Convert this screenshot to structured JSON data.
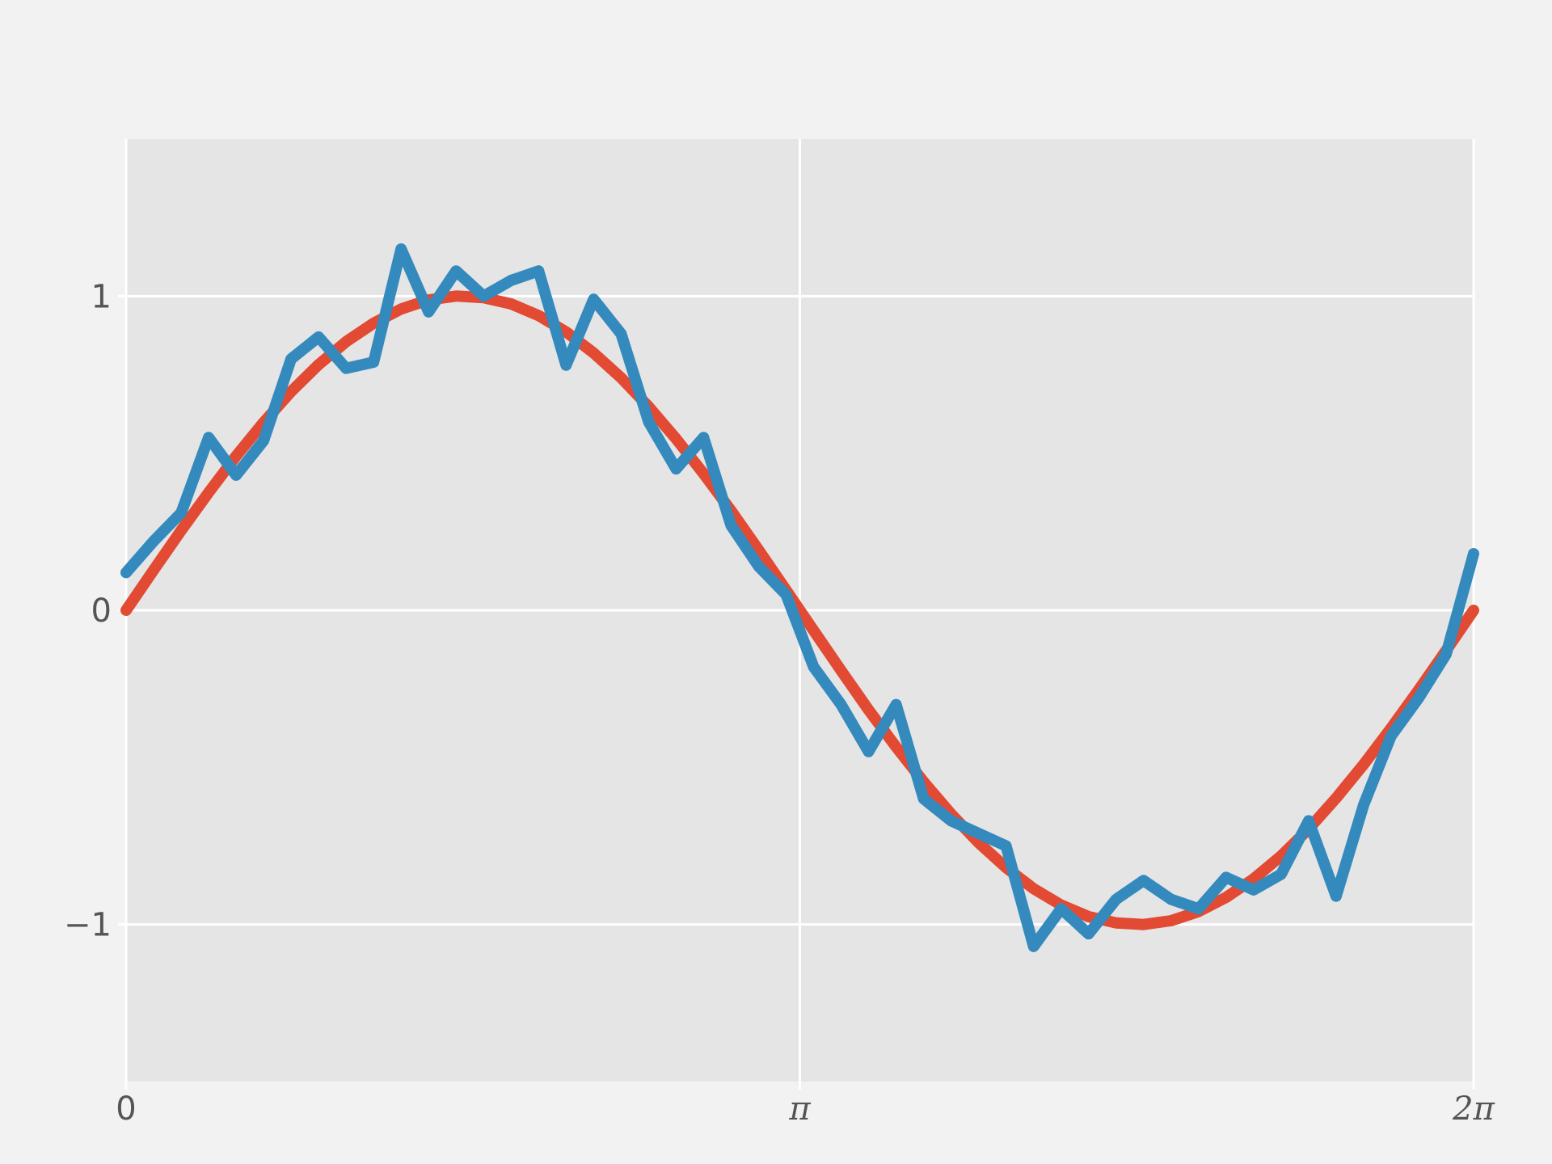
{
  "chart_data": {
    "type": "line",
    "title": "",
    "xlabel": "",
    "ylabel": "",
    "xlim": [
      0,
      6.2832
    ],
    "ylim": [
      -1.5,
      1.5
    ],
    "grid": true,
    "style": {
      "figure_background": "#f2f2f2",
      "axes_background": "#e5e5e5",
      "grid_color": "#ffffff",
      "tick_label_color": "#555555"
    },
    "xticks": [
      {
        "value": 0,
        "label": "0"
      },
      {
        "value": 3.1416,
        "label": "π",
        "pi": true
      },
      {
        "value": 6.2832,
        "label": "2π",
        "pi": true
      }
    ],
    "yticks": [
      {
        "value": 1,
        "label": "1"
      },
      {
        "value": 0,
        "label": "0"
      },
      {
        "value": -1,
        "label": "−1"
      }
    ],
    "x": [
      0,
      0.1282,
      0.2565,
      0.3847,
      0.5129,
      0.6411,
      0.7694,
      0.8976,
      1.0258,
      1.1541,
      1.2823,
      1.4105,
      1.5387,
      1.667,
      1.7952,
      1.9234,
      2.0516,
      2.1799,
      2.3081,
      2.4363,
      2.5646,
      2.6928,
      2.821,
      2.9492,
      3.0775,
      3.2057,
      3.3339,
      3.4621,
      3.5904,
      3.7186,
      3.8468,
      3.9751,
      4.1033,
      4.2315,
      4.3597,
      4.488,
      4.6162,
      4.7444,
      4.8726,
      5.0009,
      5.1291,
      5.2573,
      5.3856,
      5.5138,
      5.642,
      5.7702,
      5.8985,
      6.0267,
      6.1549,
      6.2832
    ],
    "series": [
      {
        "color": "#e24a33",
        "values": [
          0.0,
          0.128,
          0.254,
          0.375,
          0.491,
          0.598,
          0.696,
          0.782,
          0.855,
          0.914,
          0.959,
          0.988,
          1.0,
          0.995,
          0.975,
          0.938,
          0.886,
          0.819,
          0.74,
          0.648,
          0.546,
          0.435,
          0.317,
          0.192,
          0.064,
          -0.064,
          -0.192,
          -0.317,
          -0.435,
          -0.546,
          -0.648,
          -0.74,
          -0.819,
          -0.886,
          -0.938,
          -0.975,
          -0.995,
          -1.0,
          -0.988,
          -0.959,
          -0.914,
          -0.855,
          -0.782,
          -0.696,
          -0.598,
          -0.491,
          -0.375,
          -0.254,
          -0.128,
          0.0
        ]
      },
      {
        "color": "#348abd",
        "values": [
          0.12,
          0.22,
          0.31,
          0.55,
          0.43,
          0.54,
          0.8,
          0.87,
          0.77,
          0.79,
          1.15,
          0.95,
          1.08,
          1.0,
          1.05,
          1.08,
          0.78,
          0.99,
          0.88,
          0.6,
          0.45,
          0.55,
          0.27,
          0.14,
          0.05,
          -0.18,
          -0.3,
          -0.45,
          -0.3,
          -0.6,
          -0.67,
          -0.71,
          -0.75,
          -1.07,
          -0.95,
          -1.03,
          -0.92,
          -0.86,
          -0.92,
          -0.95,
          -0.85,
          -0.89,
          -0.84,
          -0.67,
          -0.91,
          -0.62,
          -0.4,
          -0.28,
          -0.14,
          0.18
        ]
      }
    ]
  }
}
